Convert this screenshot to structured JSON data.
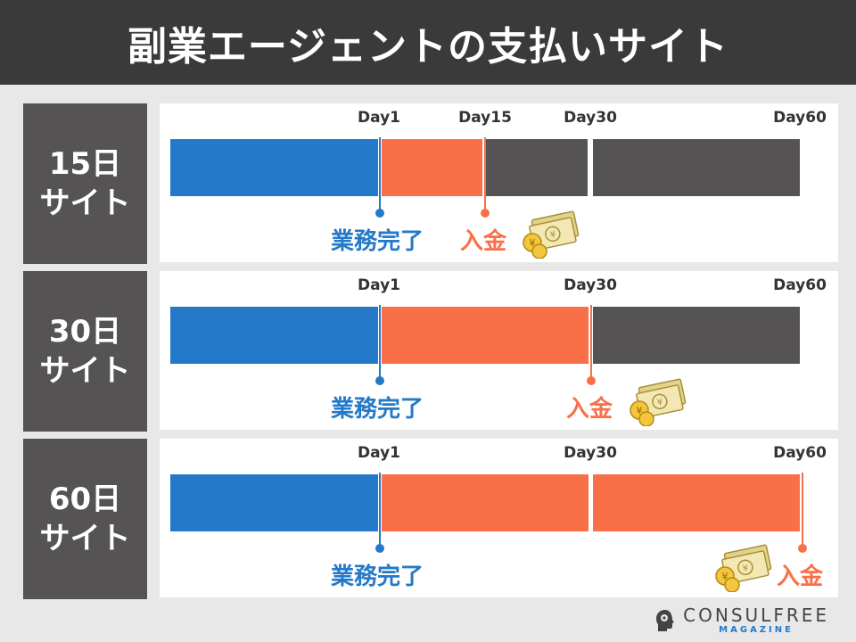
{
  "title": "副業エージェントの支払いサイト",
  "rows": [
    {
      "label_line1": "15日",
      "label_line2": "サイト",
      "days": [
        "Day1",
        "Day15",
        "Day30",
        "Day60"
      ],
      "work_label": "業務完了",
      "pay_label": "入金"
    },
    {
      "label_line1": "30日",
      "label_line2": "サイト",
      "days": [
        "Day1",
        "Day30",
        "Day60"
      ],
      "work_label": "業務完了",
      "pay_label": "入金"
    },
    {
      "label_line1": "60日",
      "label_line2": "サイト",
      "days": [
        "Day1",
        "Day30",
        "Day60"
      ],
      "work_label": "業務完了",
      "pay_label": "入金"
    }
  ],
  "colors": {
    "work": "#2479c8",
    "waiting": "#f96f48",
    "after": "#555353"
  },
  "logo": {
    "main": "CONSULFREE",
    "sub": "MAGAZINE"
  }
}
